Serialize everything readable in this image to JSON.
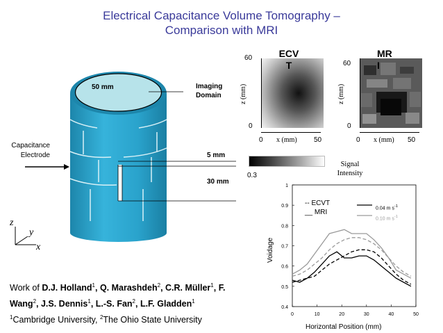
{
  "slide": {
    "title_line1": "Electrical Capacitance Volume Tomography –",
    "title_line2": "Comparison with MRI"
  },
  "diagram": {
    "diameter_label": "50 mm",
    "imaging_domain_line1": "Imaging",
    "imaging_domain_line2": "Domain",
    "electrode_line1": "Capacitance",
    "electrode_line2": "Electrode",
    "gap_label": "5 mm",
    "height_label": "30 mm",
    "axis_z": "z",
    "axis_y": "y",
    "axis_x": "x",
    "cylinder_color": "#2aa6cf",
    "top_color": "#b7e3ea"
  },
  "ecvt_panel": {
    "title_line1": "ECV",
    "title_line2": "T",
    "ylabel": "z (mm)",
    "xlabel": "x (mm)",
    "y_ticks": [
      "60",
      "0"
    ],
    "x_ticks": [
      "0",
      "50"
    ]
  },
  "mri_panel": {
    "title_line1": "MR",
    "title_line2": "I",
    "ylabel": "z (mm)",
    "xlabel": "x (mm)",
    "y_ticks": [
      "60",
      "0"
    ],
    "x_ticks": [
      "0",
      "50"
    ]
  },
  "colorbar": {
    "min_label": "0.3",
    "label_line1": "Signal",
    "label_line2": "Intensity"
  },
  "credits": {
    "line1_prefix": "Work of ",
    "authors_line1": "D.J. Holland",
    "sup1": "1",
    "authors_line1b": ", Q. Marashdeh",
    "sup2": "2",
    "authors_line1c": ", C.R. Müller",
    "sup3": "1",
    "authors_line1d": ", F.",
    "authors_line2a": "Wang",
    "sup4": "2",
    "authors_line2b": ", J.S. Dennis",
    "sup5": "1",
    "authors_line2c": ", L.-S. Fan",
    "sup6": "2",
    "authors_line2d": ", L.F. Gladden",
    "sup7": "1",
    "aff_sup1": "1",
    "aff1": "Cambridge University, ",
    "aff_sup2": "2",
    "aff2": "The Ohio State University"
  },
  "chart_data": {
    "type": "line",
    "xlabel": "Horizontal Position (mm)",
    "ylabel": "Voidage",
    "xlim": [
      0,
      50
    ],
    "ylim": [
      0.4,
      1
    ],
    "x_ticks": [
      "0",
      "10",
      "20",
      "30",
      "40",
      "50"
    ],
    "y_ticks": [
      "0.4",
      "0.5",
      "0.6",
      "0.7",
      "0.8",
      "0.9",
      "1"
    ],
    "legend_method_1": "-- ECVT",
    "legend_method_2": "__ MRI",
    "legend_speed_1": "0.04 m s",
    "legend_speed_2": "0.10 m s",
    "legend_unit_sup": "-1",
    "x": [
      0,
      3,
      6,
      9,
      12,
      15,
      18,
      21,
      24,
      27,
      30,
      33,
      36,
      39,
      42,
      45,
      48
    ],
    "series": [
      {
        "name": "MRI 0.04",
        "dash": false,
        "color": "#000000",
        "values": [
          0.53,
          0.52,
          0.54,
          0.57,
          0.61,
          0.65,
          0.67,
          0.64,
          0.64,
          0.65,
          0.65,
          0.63,
          0.6,
          0.57,
          0.54,
          0.52,
          0.5
        ]
      },
      {
        "name": "ECVT 0.04",
        "dash": true,
        "color": "#000000",
        "values": [
          0.52,
          0.53,
          0.54,
          0.55,
          0.58,
          0.61,
          0.63,
          0.65,
          0.67,
          0.68,
          0.68,
          0.67,
          0.64,
          0.6,
          0.56,
          0.53,
          0.51
        ]
      },
      {
        "name": "MRI 0.10",
        "dash": false,
        "color": "#9a9a9a",
        "values": [
          0.56,
          0.58,
          0.61,
          0.66,
          0.71,
          0.76,
          0.77,
          0.78,
          0.76,
          0.76,
          0.76,
          0.73,
          0.69,
          0.64,
          0.58,
          0.56,
          0.54
        ]
      },
      {
        "name": "ECVT 0.10",
        "dash": true,
        "color": "#9a9a9a",
        "values": [
          0.55,
          0.56,
          0.58,
          0.61,
          0.64,
          0.68,
          0.71,
          0.73,
          0.74,
          0.74,
          0.73,
          0.71,
          0.68,
          0.64,
          0.6,
          0.57,
          0.55
        ]
      }
    ]
  }
}
